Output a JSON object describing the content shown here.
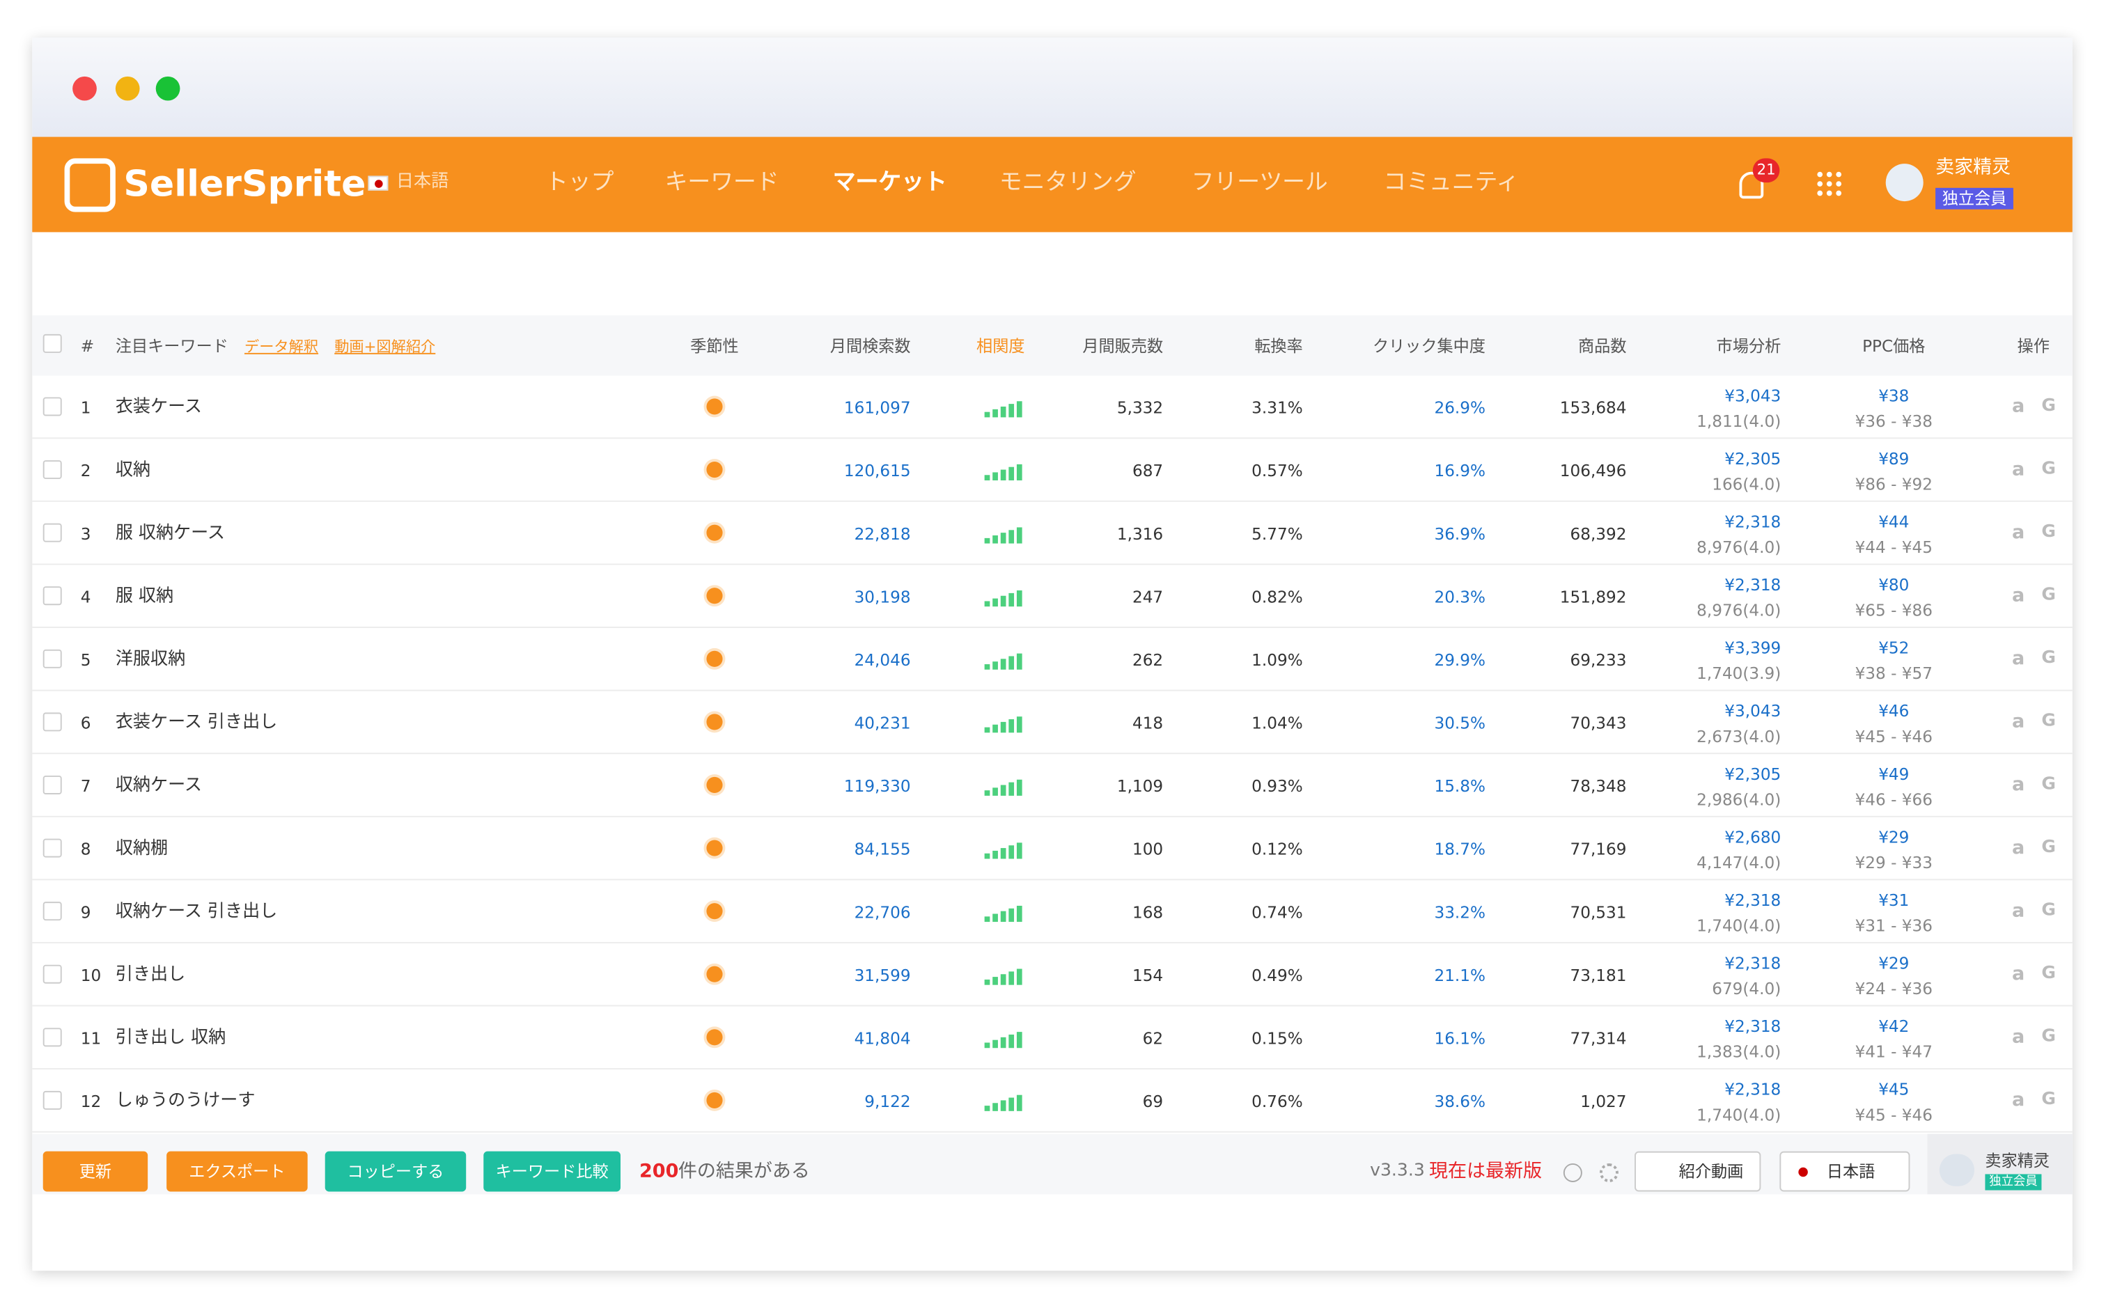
{
  "nav": {
    "logo": "SellerSprite",
    "lang": "日本語",
    "items": [
      "トップ",
      "キーワード",
      "マーケット",
      "モニタリング",
      "フリーツール",
      "コミュニティ"
    ],
    "badge": "21",
    "user": "卖家精灵",
    "member": "独立会員"
  },
  "table": {
    "headers": [
      "#",
      "注目キーワード",
      "季節性",
      "月間検索数",
      "相関度",
      "月間販売数",
      "転換率",
      "クリック集中度",
      "商品数",
      "市場分析",
      "PPC価格",
      "操作"
    ],
    "header_links": [
      "データ解釈",
      "動画+図解紹介"
    ],
    "row_actions": [
      "a",
      "G"
    ],
    "rows": [
      [
        "1",
        "衣装ケース",
        "161,097",
        "5,332",
        "3.31%",
        "26.9%",
        "153,684",
        "¥3,043",
        "1,811(4.0)",
        "¥38",
        "¥36 - ¥38"
      ],
      [
        "2",
        "収納",
        "120,615",
        "687",
        "0.57%",
        "16.9%",
        "106,496",
        "¥2,305",
        "166(4.0)",
        "¥89",
        "¥86 - ¥92"
      ],
      [
        "3",
        "服 収納ケース",
        "22,818",
        "1,316",
        "5.77%",
        "36.9%",
        "68,392",
        "¥2,318",
        "8,976(4.0)",
        "¥44",
        "¥44 - ¥45"
      ],
      [
        "4",
        "服 収納",
        "30,198",
        "247",
        "0.82%",
        "20.3%",
        "151,892",
        "¥2,318",
        "8,976(4.0)",
        "¥80",
        "¥65 - ¥86"
      ],
      [
        "5",
        "洋服収納",
        "24,046",
        "262",
        "1.09%",
        "29.9%",
        "69,233",
        "¥3,399",
        "1,740(3.9)",
        "¥52",
        "¥38 - ¥57"
      ],
      [
        "6",
        "衣装ケース 引き出し",
        "40,231",
        "418",
        "1.04%",
        "30.5%",
        "70,343",
        "¥3,043",
        "2,673(4.0)",
        "¥46",
        "¥45 - ¥46"
      ],
      [
        "7",
        "収納ケース",
        "119,330",
        "1,109",
        "0.93%",
        "15.8%",
        "78,348",
        "¥2,305",
        "2,986(4.0)",
        "¥49",
        "¥46 - ¥66"
      ],
      [
        "8",
        "収納棚",
        "84,155",
        "100",
        "0.12%",
        "18.7%",
        "77,169",
        "¥2,680",
        "4,147(4.0)",
        "¥29",
        "¥29 - ¥33"
      ],
      [
        "9",
        "収納ケース 引き出し",
        "22,706",
        "168",
        "0.74%",
        "33.2%",
        "70,531",
        "¥2,318",
        "1,740(4.0)",
        "¥31",
        "¥31 - ¥36"
      ],
      [
        "10",
        "引き出し",
        "31,599",
        "154",
        "0.49%",
        "21.1%",
        "73,181",
        "¥2,318",
        "679(4.0)",
        "¥29",
        "¥24 - ¥36"
      ],
      [
        "11",
        "引き出し 収納",
        "41,804",
        "62",
        "0.15%",
        "16.1%",
        "77,314",
        "¥2,318",
        "1,383(4.0)",
        "¥42",
        "¥41 - ¥47"
      ],
      [
        "12",
        "しゅうのうけーす",
        "9,122",
        "69",
        "0.76%",
        "38.6%",
        "1,027",
        "¥2,318",
        "1,740(4.0)",
        "¥45",
        "¥45 - ¥46"
      ]
    ]
  },
  "footer": {
    "buttons": [
      "更新",
      "エクスポート",
      "コッピーする",
      "キーワード比較"
    ],
    "count": "200",
    "count_text": "件の結果がある",
    "version": "v3.3.3",
    "latest": "現在は最新版",
    "video": "紹介動画",
    "lang": "日本語",
    "user": "卖家精灵",
    "member": "独立会員"
  }
}
